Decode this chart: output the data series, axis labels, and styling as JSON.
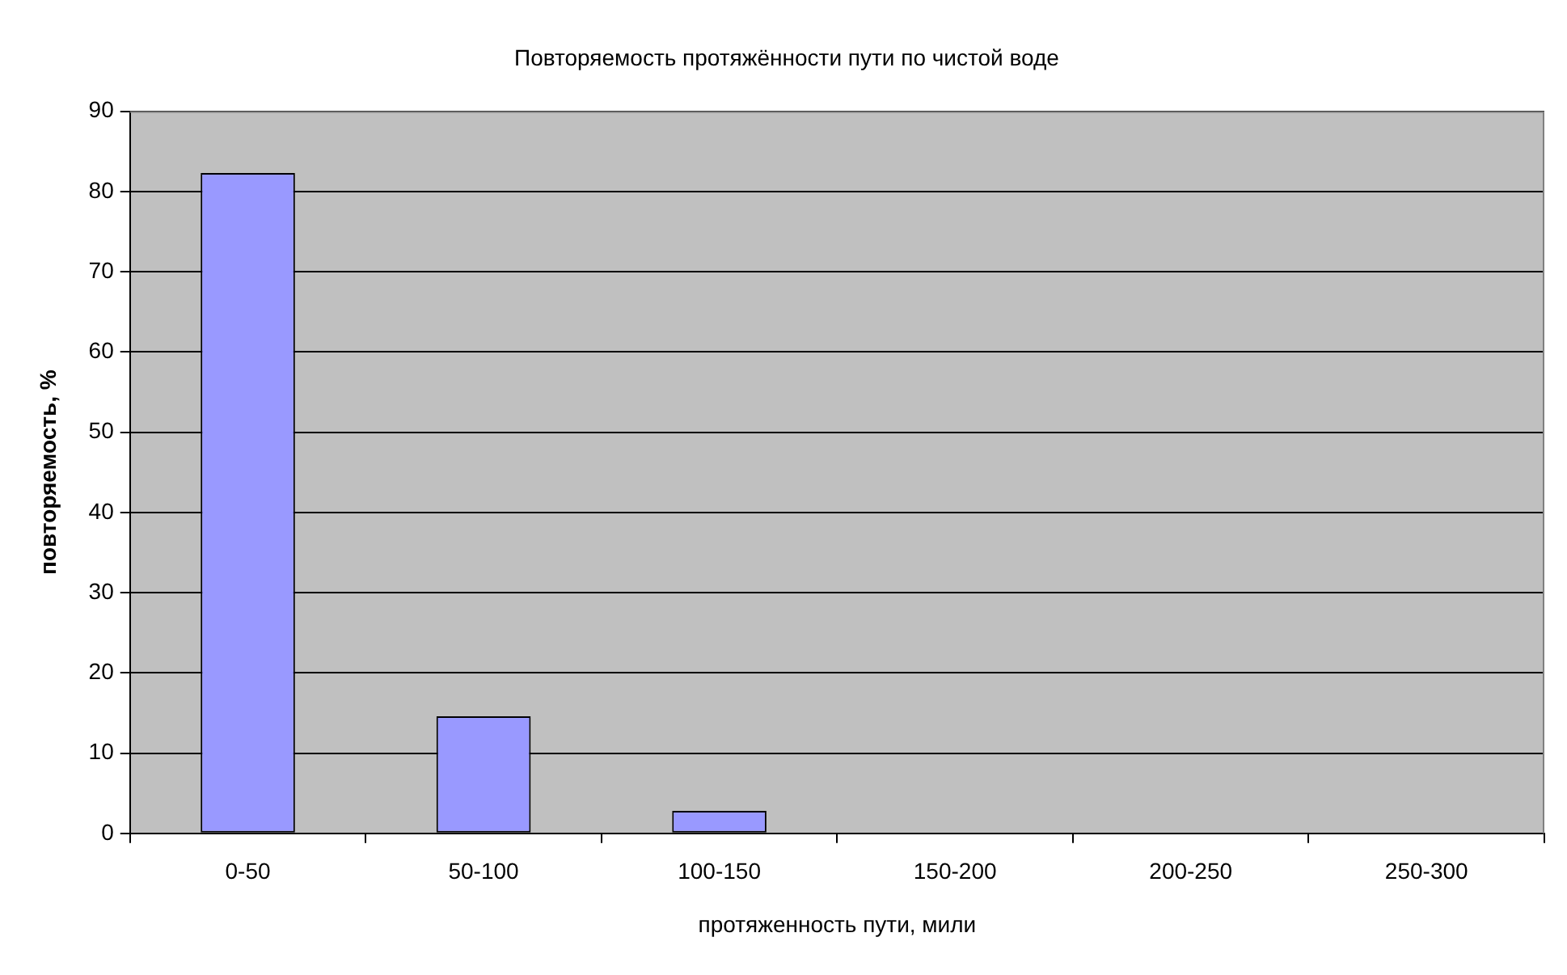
{
  "chart_data": {
    "type": "bar",
    "title": "Повторяемость протяжённости пути по чистой воде",
    "xlabel": "протяженность пути, мили",
    "ylabel": "повторяемость, %",
    "categories": [
      "0-50",
      "50-100",
      "100-150",
      "150-200",
      "200-250",
      "250-300"
    ],
    "values": [
      82.3,
      14.6,
      2.8,
      0,
      0,
      0
    ],
    "color": "#9999ff",
    "ylim": [
      0,
      90
    ],
    "yticks": [
      0,
      10,
      20,
      30,
      40,
      50,
      60,
      70,
      80,
      90
    ],
    "grid": "y",
    "legend": false
  }
}
